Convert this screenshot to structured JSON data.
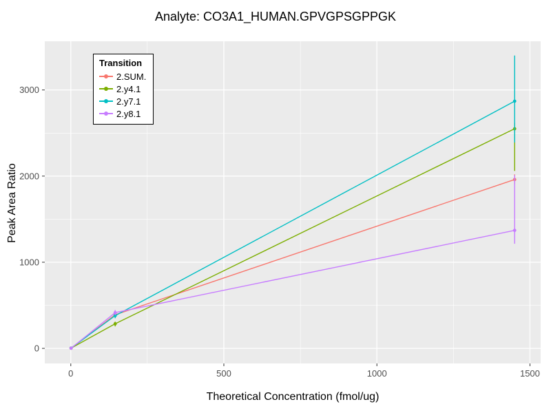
{
  "title": "Analyte: CO3A1_HUMAN.GPVGPSGPPGK",
  "chart_data": {
    "type": "line",
    "title": "Analyte: CO3A1_HUMAN.GPVGPSGPPGK",
    "xlabel": "Theoretical Concentration (fmol/ug)",
    "ylabel": "Peak Area Ratio",
    "xlim": [
      -85,
      1535
    ],
    "ylim": [
      -175,
      3565
    ],
    "x_ticks": [
      0,
      500,
      1000,
      1500
    ],
    "y_ticks": [
      0,
      1000,
      2000,
      3000
    ],
    "x_minor_ticks": [
      250,
      750,
      1250
    ],
    "y_minor_ticks": [
      500,
      1500,
      2500
    ],
    "grid": true,
    "panel_bg": "#EBEBEB",
    "grid_color": "#FFFFFF",
    "tick_label_color": "#4d4d4d",
    "legend": {
      "title": "Transition",
      "position": "top-left",
      "entries": [
        "2.SUM.",
        "2.y4.1",
        "2.y7.1",
        "2.y8.1"
      ]
    },
    "series": [
      {
        "name": "2.SUM.",
        "color": "#F8766D",
        "x": [
          1,
          145,
          1450
        ],
        "y": [
          2,
          390,
          1960
        ],
        "error_bars": [
          {
            "x": 145,
            "lo": 355,
            "hi": 420
          },
          {
            "x": 1450,
            "lo": 1905,
            "hi": 2020
          }
        ]
      },
      {
        "name": "2.y4.1",
        "color": "#7CAE00",
        "x": [
          1,
          145,
          1450
        ],
        "y": [
          3,
          285,
          2550
        ],
        "error_bars": [
          {
            "x": 145,
            "lo": 255,
            "hi": 310
          },
          {
            "x": 1450,
            "lo": 2060,
            "hi": 2620
          }
        ]
      },
      {
        "name": "2.y7.1",
        "color": "#00BFC4",
        "x": [
          1,
          145,
          1450
        ],
        "y": [
          3,
          380,
          2870
        ],
        "error_bars": [
          {
            "x": 145,
            "lo": 350,
            "hi": 405
          },
          {
            "x": 1450,
            "lo": 2390,
            "hi": 3400
          }
        ]
      },
      {
        "name": "2.y8.1",
        "color": "#C77CFF",
        "x": [
          1,
          145,
          1450
        ],
        "y": [
          2,
          415,
          1370
        ],
        "error_bars": [
          {
            "x": 145,
            "lo": 385,
            "hi": 445
          },
          {
            "x": 1450,
            "lo": 1215,
            "hi": 2010
          }
        ]
      }
    ]
  }
}
